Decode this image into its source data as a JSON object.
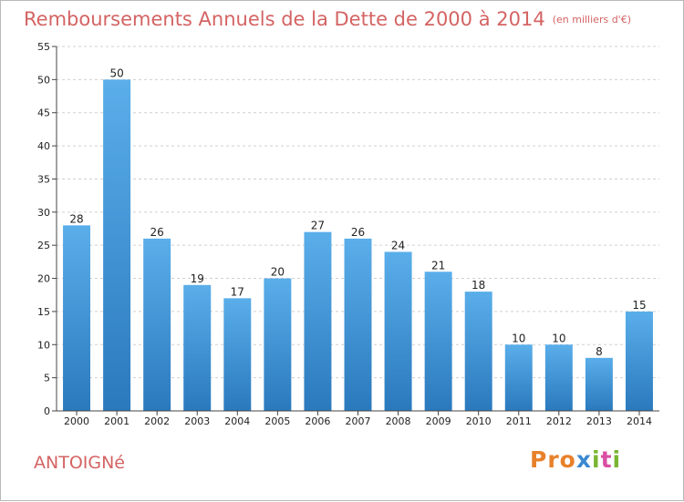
{
  "header": {
    "title": "Remboursements Annuels de la Dette de 2000 à 2014",
    "subtitle": "(en milliers d'€)"
  },
  "commune": "ANTOIGNé",
  "brand": {
    "text": "Proxiti",
    "letter_colors": [
      "#e8812a",
      "#e8812a",
      "#e8812a",
      "#3b88d0",
      "#79b532",
      "#d94ea3",
      "#79b532"
    ]
  },
  "colors": {
    "title": "#d46363",
    "bar_light": "#5aaeea",
    "bar_dark": "#2a79bd",
    "grid": "#d0d0d0"
  },
  "chart_data": {
    "type": "bar",
    "title": "Remboursements Annuels de la Dette de 2000 à 2014",
    "subtitle": "(en milliers d'€)",
    "categories": [
      "2000",
      "2001",
      "2002",
      "2003",
      "2004",
      "2005",
      "2006",
      "2007",
      "2008",
      "2009",
      "2010",
      "2011",
      "2012",
      "2013",
      "2014"
    ],
    "values": [
      28,
      50,
      26,
      19,
      17,
      20,
      27,
      26,
      24,
      21,
      18,
      10,
      10,
      8,
      15
    ],
    "ylim": [
      0,
      55
    ],
    "yticks": [
      0,
      5,
      10,
      15,
      20,
      25,
      30,
      35,
      40,
      45,
      50,
      55
    ],
    "grid": "dashed horizontal",
    "legend": "none"
  }
}
